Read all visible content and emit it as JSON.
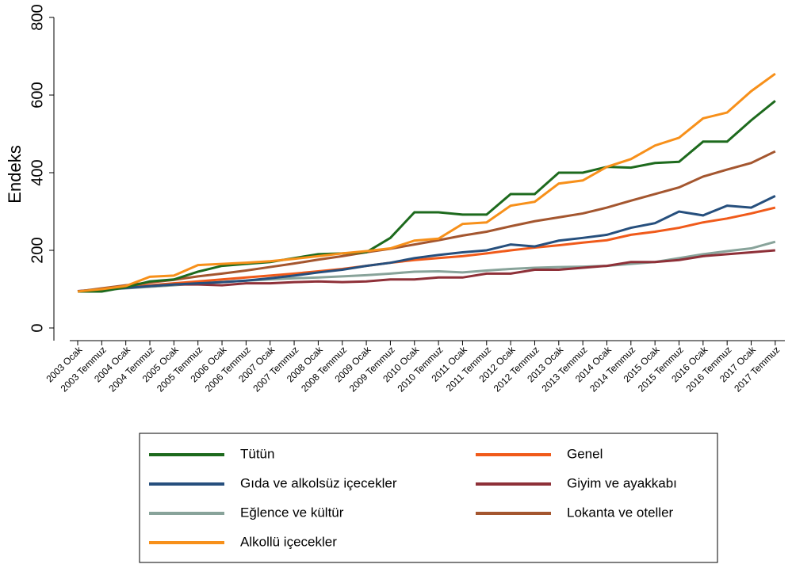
{
  "chart_data": {
    "type": "line",
    "y_label": "Endeks",
    "categories": [
      "2003 Ocak",
      "2003 Temmuz",
      "2004 Ocak",
      "2004 Temmuz",
      "2005 Ocak",
      "2005 Temmuz",
      "2006 Ocak",
      "2006 Temmuz",
      "2007 Ocak",
      "2007 Temmuz",
      "2008 Ocak",
      "2008 Temmuz",
      "2009 Ocak",
      "2009 Temmuz",
      "2010 Ocak",
      "2010 Temmuz",
      "2011 Ocak",
      "2011 Temmuz",
      "2012 Ocak",
      "2012 Temmuz",
      "2013 Ocak",
      "2013 Temmuz",
      "2014 Ocak",
      "2014 Temmuz",
      "2015 Ocak",
      "2015 Temmuz",
      "2016 Ocak",
      "2016 Temmuz",
      "2017 Ocak",
      "2017 Temmuz"
    ],
    "series": [
      {
        "name": "Tütün",
        "color": "#1d6a1d",
        "values": [
          94,
          94,
          105,
          120,
          125,
          145,
          160,
          165,
          170,
          180,
          190,
          192,
          195,
          232,
          298,
          298,
          292,
          292,
          345,
          345,
          400,
          400,
          415,
          413,
          425,
          428,
          480,
          480,
          535,
          585
        ]
      },
      {
        "name": "Gıda ve alkolsüz içecekler",
        "color": "#264f7d",
        "values": [
          94,
          100,
          103,
          108,
          112,
          115,
          118,
          122,
          128,
          135,
          143,
          150,
          160,
          168,
          180,
          188,
          195,
          200,
          215,
          210,
          225,
          232,
          240,
          258,
          270,
          300,
          290,
          315,
          310,
          340
        ]
      },
      {
        "name": "Eğlence ve kültür",
        "color": "#88a39a",
        "values": [
          94,
          98,
          102,
          106,
          110,
          115,
          118,
          122,
          125,
          128,
          130,
          133,
          136,
          140,
          145,
          146,
          143,
          148,
          152,
          155,
          157,
          158,
          160,
          165,
          170,
          180,
          190,
          198,
          205,
          222
        ]
      },
      {
        "name": "Alkollü içecekler",
        "color": "#f7901a",
        "values": [
          94,
          100,
          108,
          132,
          135,
          162,
          165,
          168,
          172,
          178,
          185,
          192,
          198,
          205,
          225,
          230,
          268,
          272,
          315,
          325,
          372,
          380,
          415,
          435,
          470,
          490,
          540,
          555,
          610,
          655
        ]
      },
      {
        "name": "Genel",
        "color": "#f05a1a",
        "values": [
          94,
          100,
          106,
          110,
          115,
          120,
          125,
          130,
          135,
          140,
          146,
          152,
          160,
          168,
          175,
          180,
          185,
          192,
          200,
          207,
          213,
          220,
          226,
          240,
          248,
          258,
          272,
          282,
          295,
          310
        ]
      },
      {
        "name": "Giyim ve ayakkabı",
        "color": "#8e3038",
        "values": [
          95,
          100,
          105,
          108,
          112,
          112,
          110,
          115,
          115,
          118,
          120,
          118,
          120,
          125,
          125,
          130,
          130,
          140,
          140,
          150,
          150,
          155,
          160,
          170,
          170,
          175,
          185,
          190,
          195,
          200
        ]
      },
      {
        "name": "Lokanta ve oteller",
        "color": "#a4562f",
        "values": [
          94,
          102,
          110,
          117,
          124,
          133,
          140,
          148,
          157,
          166,
          176,
          185,
          195,
          204,
          215,
          226,
          238,
          248,
          262,
          275,
          285,
          295,
          310,
          328,
          345,
          362,
          390,
          408,
          425,
          455
        ]
      }
    ],
    "ylim": [
      -30,
      800
    ],
    "yticks": [
      0,
      200,
      400,
      600,
      800
    ]
  }
}
